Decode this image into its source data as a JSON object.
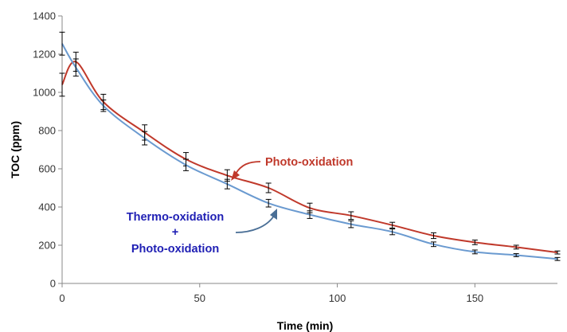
{
  "chart_data": {
    "type": "line",
    "xlabel": "Time  (min)",
    "ylabel": "TOC (ppm)",
    "xlim": [
      0,
      180
    ],
    "ylim": [
      0,
      1400
    ],
    "x_ticks": [
      "0",
      "50",
      "100",
      "150"
    ],
    "y_ticks": [
      "0",
      "200",
      "400",
      "600",
      "800",
      "1000",
      "1200",
      "1400"
    ],
    "grid": false,
    "legend": "none (series identified by annotations with arrows)",
    "series": [
      {
        "name": "Photo-oxidation",
        "color": "#c0392b",
        "points": [
          {
            "x": 0,
            "y": 1040,
            "err": 60
          },
          {
            "x": 5,
            "y": 1160,
            "err": 50
          },
          {
            "x": 15,
            "y": 950,
            "err": 40
          },
          {
            "x": 30,
            "y": 790,
            "err": 40
          },
          {
            "x": 45,
            "y": 650,
            "err": 35
          },
          {
            "x": 60,
            "y": 565,
            "err": 30
          },
          {
            "x": 75,
            "y": 500,
            "err": 25
          },
          {
            "x": 90,
            "y": 395,
            "err": 25
          },
          {
            "x": 105,
            "y": 355,
            "err": 20
          },
          {
            "x": 120,
            "y": 305,
            "err": 15
          },
          {
            "x": 135,
            "y": 250,
            "err": 15
          },
          {
            "x": 150,
            "y": 215,
            "err": 12
          },
          {
            "x": 165,
            "y": 190,
            "err": 10
          },
          {
            "x": 180,
            "y": 162,
            "err": 8
          }
        ]
      },
      {
        "name": "Thermo-oxidation + Photo-oxidation",
        "color": "#6a9ad0",
        "points": [
          {
            "x": 0,
            "y": 1255,
            "err": 60
          },
          {
            "x": 5,
            "y": 1130,
            "err": 45
          },
          {
            "x": 15,
            "y": 930,
            "err": 30
          },
          {
            "x": 30,
            "y": 760,
            "err": 35
          },
          {
            "x": 45,
            "y": 620,
            "err": 30
          },
          {
            "x": 60,
            "y": 520,
            "err": 25
          },
          {
            "x": 75,
            "y": 420,
            "err": 20
          },
          {
            "x": 90,
            "y": 360,
            "err": 20
          },
          {
            "x": 105,
            "y": 310,
            "err": 18
          },
          {
            "x": 120,
            "y": 270,
            "err": 15
          },
          {
            "x": 135,
            "y": 205,
            "err": 12
          },
          {
            "x": 150,
            "y": 165,
            "err": 10
          },
          {
            "x": 165,
            "y": 148,
            "err": 8
          },
          {
            "x": 180,
            "y": 128,
            "err": 8
          }
        ]
      }
    ],
    "annotations": {
      "photo": {
        "text": "Photo-oxidation",
        "color": "#c0392b"
      },
      "thermo_line1": {
        "text": "Thermo-oxidation",
        "color": "#1f1fb4"
      },
      "thermo_plus": {
        "text": "+",
        "color": "#1f1fb4"
      },
      "thermo_line2": {
        "text": "Photo-oxidation",
        "color": "#1f1fb4"
      }
    },
    "axis_color": "#888888",
    "error_bar_color": "#000000"
  }
}
